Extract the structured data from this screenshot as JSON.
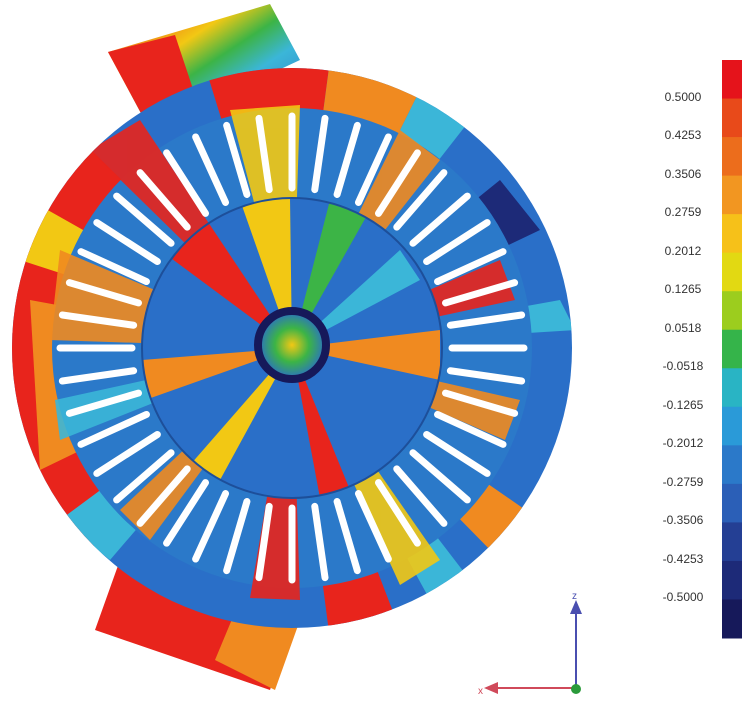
{
  "legend": {
    "labels": [
      "0.5000",
      "0.4253",
      "0.3506",
      "0.2759",
      "0.2012",
      "0.1265",
      "0.0518",
      "-0.0518",
      "-0.1265",
      "-0.2012",
      "-0.2759",
      "-0.3506",
      "-0.4253",
      "-0.5000"
    ],
    "colors": [
      "#e5131b",
      "#e84a1a",
      "#ec6d1c",
      "#f29621",
      "#f6c119",
      "#e2d912",
      "#9ccd1e",
      "#35b44a",
      "#29b4c4",
      "#2a9ad8",
      "#2b79c9",
      "#2b5fb7",
      "#243f94",
      "#1d2a78",
      "#16195a"
    ]
  },
  "triad": {
    "z_label": "z",
    "x_label": "x"
  },
  "colors": {
    "red": "#e8241c",
    "blue": "#2a6fc8",
    "cyan": "#3bb6d8",
    "yellow": "#f2c814",
    "orange": "#f08a20",
    "green": "#3cb446"
  }
}
